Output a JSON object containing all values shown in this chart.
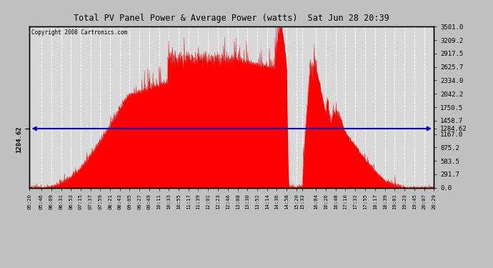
{
  "title": "Total PV Panel Power & Average Power (watts)  Sat Jun 28 20:39",
  "copyright": "Copyright 2008 Cartronics.com",
  "avg_power": 1284.62,
  "y_max": 3501.0,
  "y_min": 0.0,
  "y_tick_labels": [
    "0.0",
    "291.7",
    "583.5",
    "875.2",
    "1167.0",
    "1458.7",
    "1750.5",
    "2042.2",
    "2334.0",
    "2625.7",
    "2917.5",
    "3209.2",
    "3501.0"
  ],
  "y_tick_vals": [
    0.0,
    291.7,
    583.5,
    875.2,
    1167.0,
    1458.7,
    1750.5,
    2042.2,
    2334.0,
    2625.7,
    2917.5,
    3209.2,
    3501.0
  ],
  "background_color": "#d8d8d8",
  "fill_color": "#ff0000",
  "avg_line_color": "#0000cc",
  "grid_color": "#bbbbbb",
  "title_color": "#000000",
  "fig_bg": "#c0c0c0",
  "x_tick_labels": [
    "05:20",
    "05:46",
    "06:09",
    "06:31",
    "06:53",
    "07:15",
    "07:37",
    "07:59",
    "08:21",
    "08:43",
    "09:05",
    "09:27",
    "09:49",
    "10:11",
    "10:33",
    "10:55",
    "11:17",
    "11:39",
    "12:01",
    "12:23",
    "12:46",
    "13:08",
    "13:30",
    "13:52",
    "14:14",
    "14:36",
    "14:58",
    "15:20",
    "15:33",
    "16:04",
    "16:26",
    "16:48",
    "17:10",
    "17:32",
    "17:55",
    "18:17",
    "18:39",
    "19:01",
    "19:23",
    "19:45",
    "20:07",
    "20:29"
  ]
}
